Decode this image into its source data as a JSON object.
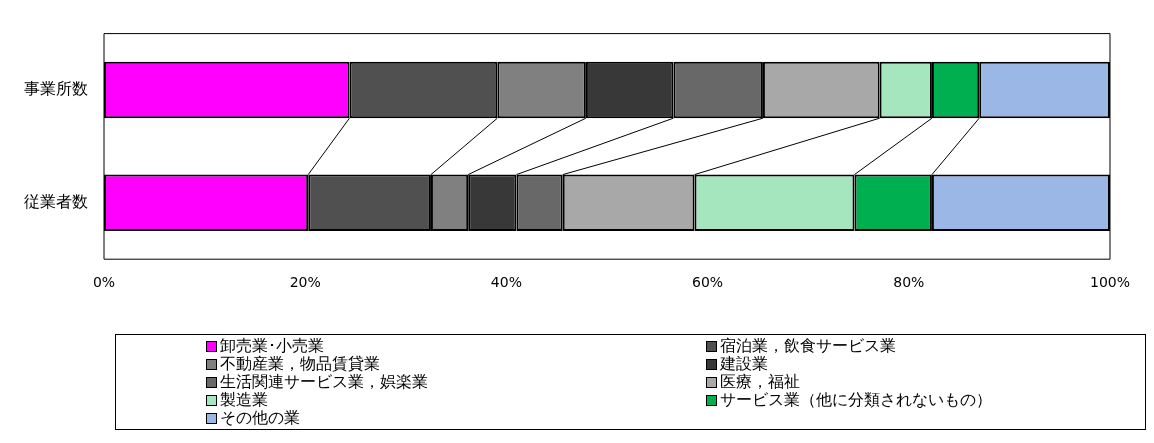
{
  "chart_data": {
    "type": "bar",
    "orientation": "horizontal",
    "stacked": true,
    "categories": [
      "事業所数",
      "従業者数"
    ],
    "series": [
      {
        "name": "卸売業･小売業",
        "color": "#ff00ff",
        "values": [
          24.4,
          20.3
        ]
      },
      {
        "name": "宿泊業，飲食サービス業",
        "color": "#505050",
        "values": [
          14.7,
          12.2
        ]
      },
      {
        "name": "不動産業，物品賃貸業",
        "color": "#808080",
        "values": [
          8.8,
          3.7
        ]
      },
      {
        "name": "建設業",
        "color": "#383838",
        "values": [
          8.7,
          4.8
        ]
      },
      {
        "name": "生活関連サービス業，娯楽業",
        "color": "#686868",
        "values": [
          8.9,
          4.6
        ]
      },
      {
        "name": "医療，福祉",
        "color": "#a8a8a8",
        "values": [
          11.6,
          13.1
        ]
      },
      {
        "name": "製造業",
        "color": "#a6e6bf",
        "values": [
          5.2,
          15.9
        ]
      },
      {
        "name": "サービス業（他に分類されないもの）",
        "color": "#00b050",
        "values": [
          4.7,
          7.7
        ]
      },
      {
        "name": "その他の業",
        "color": "#9ab7e6",
        "values": [
          13.0,
          17.7
        ]
      }
    ],
    "xlim": [
      0,
      100
    ],
    "xticks": [
      {
        "value": 0,
        "label": "0%"
      },
      {
        "value": 20,
        "label": "20%"
      },
      {
        "value": 40,
        "label": "40%"
      },
      {
        "value": 60,
        "label": "60%"
      },
      {
        "value": 80,
        "label": "80%"
      },
      {
        "value": 100,
        "label": "100%"
      }
    ],
    "grid": false,
    "legend": "bottom"
  }
}
